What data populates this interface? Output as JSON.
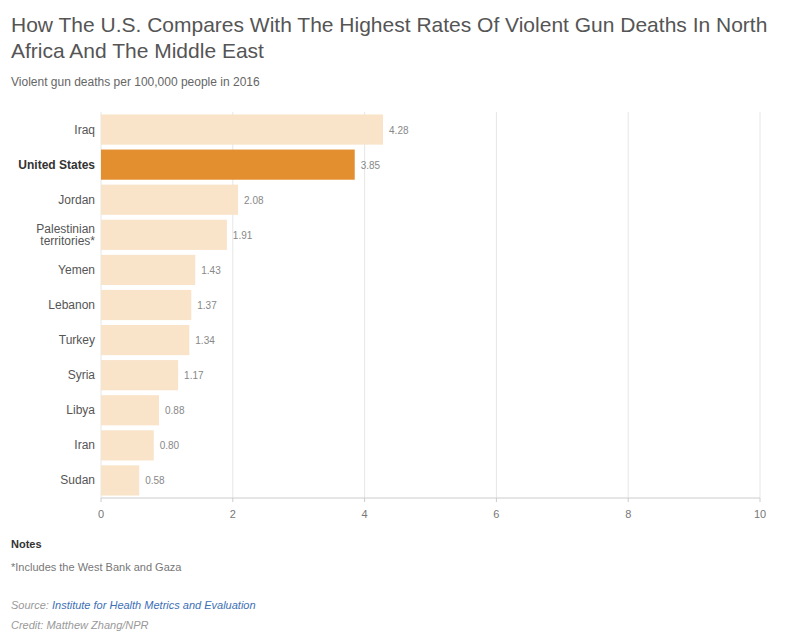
{
  "chart_data": {
    "type": "bar",
    "orientation": "horizontal",
    "title": "How The U.S. Compares With The Highest Rates Of Violent Gun Deaths In North Africa And The Middle East",
    "subtitle": "Violent gun deaths per 100,000 people in 2016",
    "categories": [
      "Iraq",
      "United States",
      "Jordan",
      "Palestinian territories*",
      "Yemen",
      "Lebanon",
      "Turkey",
      "Syria",
      "Libya",
      "Iran",
      "Sudan"
    ],
    "values": [
      4.28,
      3.85,
      2.08,
      1.91,
      1.43,
      1.37,
      1.34,
      1.17,
      0.88,
      0.8,
      0.58
    ],
    "value_labels": [
      "4.28",
      "3.85",
      "2.08",
      "1.91",
      "1.43",
      "1.37",
      "1.34",
      "1.17",
      "0.88",
      "0.80",
      "0.58"
    ],
    "colors": [
      "#f9e3c9",
      "#e48f2f",
      "#f9e3c9",
      "#f9e3c9",
      "#f9e3c9",
      "#f9e3c9",
      "#f9e3c9",
      "#f9e3c9",
      "#f9e3c9",
      "#f9e3c9",
      "#f9e3c9"
    ],
    "xlim": [
      0,
      10
    ],
    "xticks": [
      0,
      2,
      4,
      6,
      8,
      10
    ],
    "grid": true,
    "data_labels": true,
    "notes_title": "Notes",
    "note": "*Includes the West Bank and Gaza",
    "source_label": "Source:",
    "source": "Institute for Health Metrics and Evaluation",
    "credit": "Credit: Matthew Zhang/NPR"
  }
}
